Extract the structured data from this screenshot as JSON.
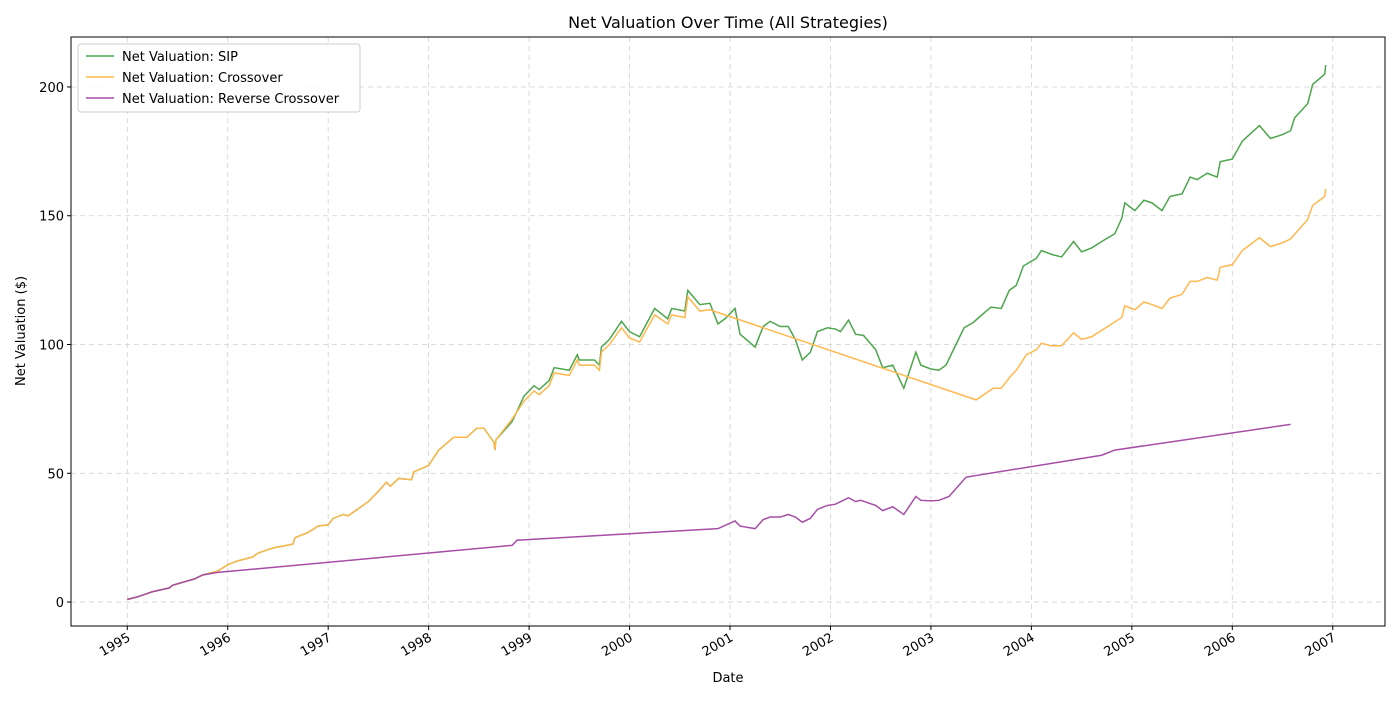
{
  "chart_data": {
    "type": "line",
    "title": "Net Valuation Over Time (All Strategies)",
    "x_label": "Date",
    "y_label": "Net Valuation ($)",
    "xlim": [
      1994.44,
      2007.52
    ],
    "xticks": [
      1995,
      1996,
      1997,
      1998,
      1999,
      2000,
      2001,
      2002,
      2003,
      2004,
      2005,
      2006,
      2007
    ],
    "ylim": [
      -9.3,
      219.4
    ],
    "yticks": [
      0,
      50,
      100,
      150,
      200
    ],
    "grid": true,
    "legend": "upper left",
    "series": [
      {
        "name": "Net Valuation: SIP",
        "color": "#4da64d",
        "x": [
          1995.0,
          1995.1,
          1995.25,
          1995.42,
          1995.45,
          1995.67,
          1995.75,
          1995.9,
          1996.0,
          1996.1,
          1996.25,
          1996.3,
          1996.45,
          1996.65,
          1996.67,
          1996.8,
          1996.9,
          1997.0,
          1997.05,
          1997.15,
          1997.2,
          1997.4,
          1997.5,
          1997.58,
          1997.62,
          1997.7,
          1997.83,
          1997.85,
          1998.0,
          1998.1,
          1998.25,
          1998.38,
          1998.48,
          1998.55,
          1998.65,
          1998.66,
          1998.67,
          1998.83,
          1998.95,
          1999.05,
          1999.1,
          1999.2,
          1999.25,
          1999.4,
          1999.48,
          1999.5,
          1999.65,
          1999.7,
          1999.72,
          1999.8,
          1999.92,
          2000.0,
          2000.1,
          2000.25,
          2000.38,
          2000.42,
          2000.55,
          2000.58,
          2000.7,
          2000.8,
          2000.88,
          2000.95,
          2001.05,
          2001.1,
          2001.25,
          2001.33,
          2001.4,
          2001.5,
          2001.58,
          2001.65,
          2001.72,
          2001.8,
          2001.87,
          2001.97,
          2002.05,
          2002.1,
          2002.18,
          2002.25,
          2002.33,
          2002.45,
          2002.52,
          2002.62,
          2002.73,
          2002.85,
          2002.9,
          2003.0,
          2003.08,
          2003.15,
          2003.33,
          2003.42,
          2003.55,
          2003.6,
          2003.7,
          2003.78,
          2003.85,
          2003.92,
          2004.05,
          2004.1,
          2004.2,
          2004.3,
          2004.42,
          2004.5,
          2004.6,
          2004.7,
          2004.83,
          2004.9,
          2004.93,
          2005.03,
          2005.12,
          2005.2,
          2005.3,
          2005.38,
          2005.5,
          2005.58,
          2005.65,
          2005.75,
          2005.85,
          2005.88,
          2006.0,
          2006.1,
          2006.27,
          2006.38,
          2006.5,
          2006.58,
          2006.62,
          2006.75,
          2006.8,
          2006.92,
          2006.93
        ],
        "values": [
          1,
          2,
          4,
          5.5,
          6.5,
          9,
          10.5,
          12,
          14.5,
          16,
          17.5,
          19,
          21,
          22.5,
          25,
          27,
          29.5,
          30,
          32.5,
          34,
          33.5,
          39,
          43,
          46.5,
          45,
          48,
          47.5,
          50.5,
          53,
          59,
          64,
          64,
          67.5,
          67.5,
          62,
          59,
          63,
          70,
          80,
          84,
          82.5,
          86,
          91,
          90,
          96,
          94,
          94,
          92,
          99,
          102,
          109,
          105,
          103,
          114,
          110,
          114,
          113,
          121,
          115.5,
          116,
          108,
          110,
          114,
          104,
          99,
          107,
          109,
          107,
          107,
          102,
          94,
          97,
          105,
          106.5,
          106,
          105,
          109.5,
          104,
          103.5,
          98,
          91,
          92,
          83,
          97,
          92,
          90.5,
          90,
          92,
          106.5,
          108.5,
          113,
          114.5,
          114,
          121,
          123,
          130.5,
          133.5,
          136.5,
          135,
          134,
          140,
          136,
          137.5,
          140,
          143,
          149,
          155,
          152,
          156,
          155,
          152,
          157.5,
          158.5,
          165,
          164,
          166.5,
          165,
          171,
          172,
          179,
          185,
          180,
          181.5,
          183,
          188,
          193.5,
          201,
          205,
          208.5
        ]
      },
      {
        "name": "Net Valuation: Crossover",
        "color": "#ffb84d",
        "x": [
          1995.0,
          1995.1,
          1995.25,
          1995.42,
          1995.45,
          1995.67,
          1995.75,
          1995.9,
          1996.0,
          1996.1,
          1996.25,
          1996.3,
          1996.45,
          1996.65,
          1996.67,
          1996.8,
          1996.9,
          1997.0,
          1997.05,
          1997.15,
          1997.2,
          1997.4,
          1997.5,
          1997.58,
          1997.62,
          1997.7,
          1997.83,
          1997.85,
          1998.0,
          1998.1,
          1998.25,
          1998.38,
          1998.48,
          1998.55,
          1998.65,
          1998.66,
          1998.67,
          1998.83,
          1998.95,
          1999.05,
          1999.1,
          1999.2,
          1999.25,
          1999.4,
          1999.48,
          1999.5,
          1999.65,
          1999.7,
          1999.72,
          1999.8,
          1999.92,
          2000.0,
          2000.1,
          2000.25,
          2000.38,
          2000.42,
          2000.55,
          2000.58,
          2000.7,
          2000.8,
          2003.45,
          2003.62,
          2003.7,
          2003.8,
          2003.85,
          2003.95,
          2004.05,
          2004.1,
          2004.2,
          2004.3,
          2004.42,
          2004.5,
          2004.6,
          2004.9,
          2004.93,
          2005.03,
          2005.12,
          2005.2,
          2005.3,
          2005.38,
          2005.5,
          2005.58,
          2005.65,
          2005.75,
          2005.85,
          2005.88,
          2006.0,
          2006.1,
          2006.27,
          2006.38,
          2006.5,
          2006.58,
          2006.75,
          2006.8,
          2006.92,
          2006.93
        ],
        "values": [
          1,
          2,
          4,
          5.5,
          6.5,
          9,
          10.5,
          12,
          14.5,
          16,
          17.5,
          19,
          21,
          22.5,
          25,
          27,
          29.5,
          30,
          32.5,
          34,
          33.5,
          39,
          43,
          46.5,
          45,
          48,
          47.5,
          50.5,
          53,
          59,
          64,
          64,
          67.5,
          67.5,
          62,
          59,
          63,
          71,
          78,
          82,
          80.5,
          84,
          89,
          88,
          94,
          92,
          92,
          90,
          97,
          100,
          106.5,
          102.5,
          101,
          111.5,
          108,
          111.5,
          110.5,
          118.5,
          113,
          113.5,
          78.5,
          83,
          83,
          88,
          90,
          96,
          98,
          100.5,
          99.5,
          99.5,
          104.5,
          102,
          103,
          110.5,
          115,
          113.5,
          116.5,
          115.5,
          114,
          118,
          119.5,
          124.5,
          124.5,
          126,
          125,
          130,
          131,
          136.5,
          141.5,
          138,
          139.5,
          141,
          148.5,
          154,
          157.5,
          160.5
        ]
      },
      {
        "name": "Net Valuation: Reverse Crossover",
        "color": "#a64da6",
        "x": [
          1995.0,
          1995.1,
          1995.25,
          1995.42,
          1995.45,
          1995.67,
          1995.75,
          1995.9,
          1998.83,
          1998.88,
          2000.88,
          2001.05,
          2001.1,
          2001.25,
          2001.33,
          2001.4,
          2001.5,
          2001.58,
          2001.65,
          2001.72,
          2001.8,
          2001.87,
          2001.97,
          2002.05,
          2002.18,
          2002.25,
          2002.3,
          2002.45,
          2002.52,
          2002.62,
          2002.73,
          2002.85,
          2002.9,
          2003.0,
          2003.08,
          2003.18,
          2003.35,
          2004.7,
          2004.83,
          2006.58
        ],
        "values": [
          1,
          2,
          4,
          5.5,
          6.5,
          9,
          10.5,
          11.5,
          22,
          24,
          28.5,
          31.5,
          29.5,
          28.5,
          32,
          33,
          33,
          34,
          33,
          31,
          32.5,
          36,
          37.5,
          38,
          40.5,
          39,
          39.5,
          37.5,
          35.5,
          37,
          34,
          41,
          39.5,
          39.3,
          39.5,
          41,
          48.5,
          57,
          59,
          69
        ]
      }
    ]
  }
}
